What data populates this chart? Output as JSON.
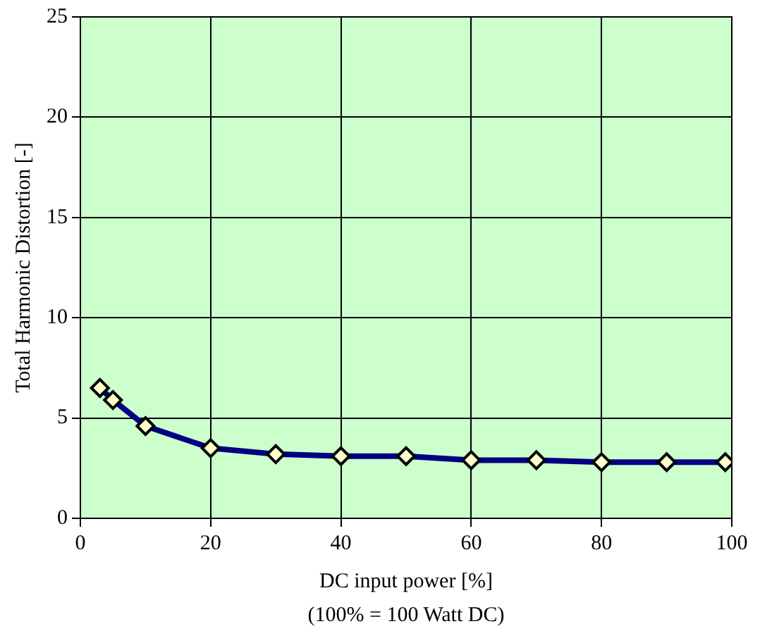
{
  "chart_data": {
    "type": "line",
    "xlabel": "DC input power [%]",
    "ylabel": "Total Harmonic Distortion [-]",
    "annotations": [
      "(100% = 100 Watt DC)"
    ],
    "x": [
      3,
      5,
      10,
      20,
      30,
      40,
      50,
      60,
      70,
      80,
      90,
      99
    ],
    "series": [
      {
        "color": "#000080",
        "values": [
          6.5,
          5.9,
          4.6,
          3.5,
          3.2,
          3.1,
          3.1,
          2.9,
          2.9,
          2.8,
          2.8,
          2.8
        ]
      }
    ],
    "xlim": [
      0,
      100
    ],
    "xticks": [
      0,
      20,
      40,
      60,
      80,
      100
    ],
    "ylim": [
      0,
      25
    ],
    "yticks": [
      0,
      5,
      10,
      15,
      20,
      25
    ],
    "grid": true,
    "legend": false,
    "marker": "diamond",
    "line_style": "solid"
  }
}
